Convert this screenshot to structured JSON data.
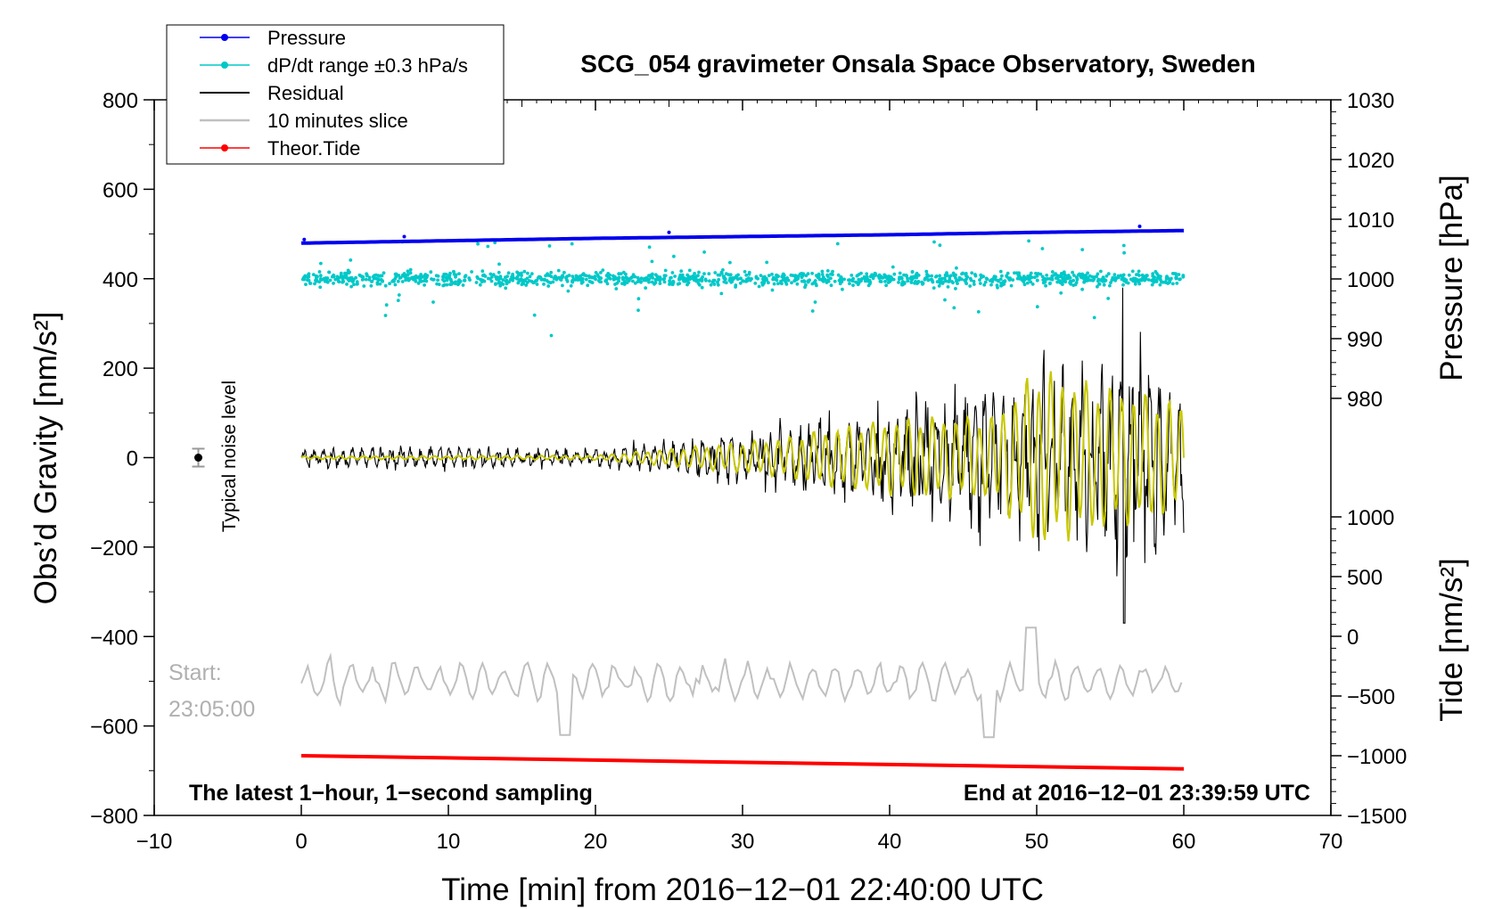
{
  "chart_data": {
    "type": "line",
    "title": "SCG_054 gravimeter Onsala Space Observatory, Sweden",
    "xlabel": "Time [min] from 2016−12−01 22:40:00 UTC",
    "ylabel_left": "Obs’d Gravity [nm/s²]",
    "ylabel_right_top": "Pressure [hPa]",
    "ylabel_right_bottom": "Tide [nm/s²]",
    "xlim": [
      -10,
      70
    ],
    "ylim_left": [
      -800,
      800
    ],
    "ylim_pressure": [
      980,
      1030
    ],
    "ylim_tide": [
      -1500,
      1000
    ],
    "x_ticks": [
      {
        "value": -10,
        "label": "−10"
      },
      {
        "value": 0,
        "label": "0"
      },
      {
        "value": 10,
        "label": "10"
      },
      {
        "value": 20,
        "label": "20"
      },
      {
        "value": 30,
        "label": "30"
      },
      {
        "value": 40,
        "label": "40"
      },
      {
        "value": 50,
        "label": "50"
      },
      {
        "value": 60,
        "label": "60"
      },
      {
        "value": 70,
        "label": "70"
      }
    ],
    "y_ticks_left": [
      {
        "value": 800,
        "label": "800"
      },
      {
        "value": 600,
        "label": "600"
      },
      {
        "value": 400,
        "label": "400"
      },
      {
        "value": 200,
        "label": "200"
      },
      {
        "value": 0,
        "label": "0"
      },
      {
        "value": -200,
        "label": "−200"
      },
      {
        "value": -400,
        "label": "−400"
      },
      {
        "value": -600,
        "label": "−600"
      },
      {
        "value": -800,
        "label": "−800"
      }
    ],
    "y_ticks_pressure": [
      {
        "value": 1030,
        "label": "1030"
      },
      {
        "value": 1020,
        "label": "1020"
      },
      {
        "value": 1010,
        "label": "1010"
      },
      {
        "value": 1000,
        "label": "1000"
      },
      {
        "value": 990,
        "label": "990"
      },
      {
        "value": 980,
        "label": "980"
      }
    ],
    "y_ticks_tide": [
      {
        "value": 1000,
        "label": "1000"
      },
      {
        "value": 500,
        "label": "500"
      },
      {
        "value": 0,
        "label": "0"
      },
      {
        "value": -500,
        "label": "−500"
      },
      {
        "value": -1000,
        "label": "−1000"
      },
      {
        "value": -1500,
        "label": "−1500"
      }
    ],
    "legend": {
      "position": "top-left",
      "entries": [
        {
          "label": "Pressure",
          "color": "#0000ee",
          "marker": "dot"
        },
        {
          "label": "dP/dt range ±0.3 hPa/s",
          "color": "#00c8c8",
          "marker": "dot"
        },
        {
          "label": "Residual",
          "color": "#000000",
          "marker": "none"
        },
        {
          "label": "10 minutes slice",
          "color": "#c0c0c0",
          "marker": "none"
        },
        {
          "label": "Theor.Tide",
          "color": "#ff0000",
          "marker": "dot"
        }
      ]
    },
    "series": [
      {
        "name": "Pressure",
        "axis": "pressure",
        "color": "#0000ee",
        "x": [
          0,
          10,
          20,
          30,
          40,
          50,
          60
        ],
        "values": [
          1006.0,
          1006.4,
          1006.8,
          1007.1,
          1007.4,
          1007.8,
          1008.1
        ]
      },
      {
        "name": "dP/dt range ±0.3 hPa/s",
        "axis": "left",
        "color": "#00c8c8",
        "note": "scattered dots around 400 nm/s², spread roughly 340–460 with outliers to ~270",
        "x_range": [
          0,
          60
        ],
        "center": 400,
        "spread": 30
      },
      {
        "name": "Residual",
        "axis": "left",
        "color": "#000000",
        "note": "noise ~±25 up to 27 min, growing oscillations afterwards, peaks ~+380 / −370 near 56 min",
        "x": [
          0,
          10,
          20,
          27,
          32,
          37,
          42,
          47,
          50,
          53,
          56,
          60
        ],
        "amplitude": [
          25,
          28,
          22,
          50,
          80,
          110,
          150,
          180,
          200,
          220,
          300,
          200
        ]
      },
      {
        "name": "Residual (filtered)",
        "axis": "left",
        "color": "#c8c800",
        "note": "yellow low-pass overlay, amplitude ~200 between 48 and 60 min",
        "x": [
          0,
          10,
          20,
          27,
          32,
          37,
          42,
          47,
          50,
          53,
          56,
          60
        ],
        "amplitude": [
          3,
          4,
          5,
          25,
          40,
          70,
          90,
          90,
          200,
          170,
          150,
          120
        ]
      },
      {
        "name": "10 minutes slice",
        "axis": "left",
        "color": "#c0c0c0",
        "note": "zoomed 10-minute slice drawn around −500 nm/s²",
        "x_range": [
          0,
          60
        ],
        "center": -500,
        "amplitude": 60
      },
      {
        "name": "Theor.Tide",
        "axis": "tide",
        "color": "#ff0000",
        "x": [
          0,
          60
        ],
        "values": [
          -1000,
          -1110
        ]
      }
    ],
    "noise_marker": {
      "x": -7,
      "y": 0,
      "error": 20,
      "label": "Typical noise level"
    },
    "annotations": {
      "start_label": "Start:",
      "start_time": "23:05:00",
      "bottom_left": "The latest 1−hour, 1−second sampling",
      "bottom_right": "End at 2016−12−01 23:39:59 UTC"
    },
    "grid": false
  }
}
